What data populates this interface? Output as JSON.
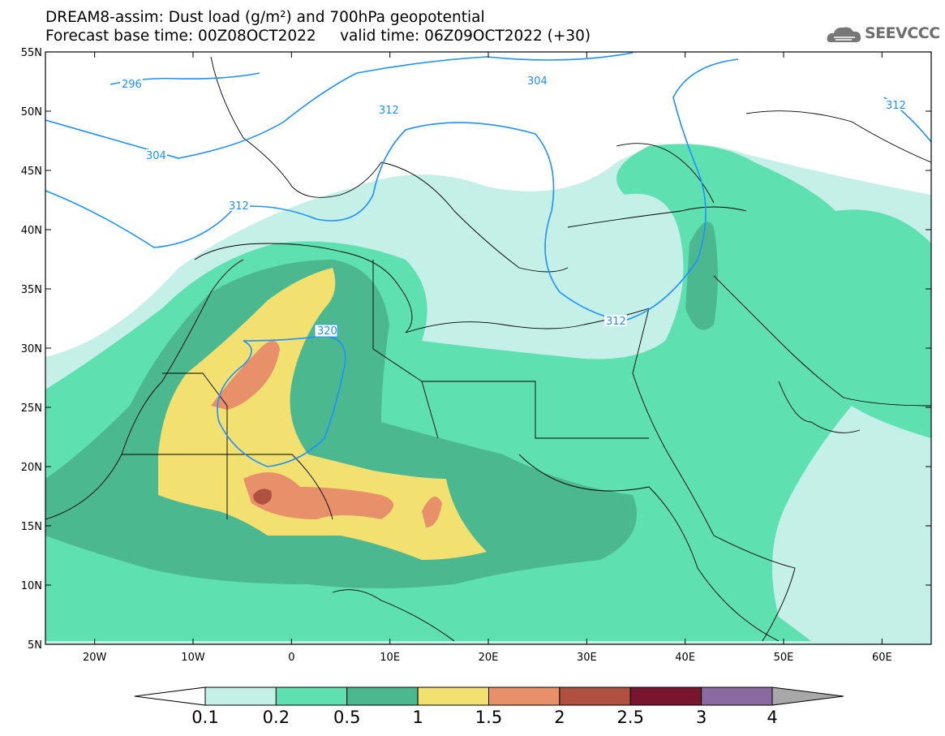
{
  "title": {
    "line1": "DREAM8-assim: Dust load (g/m²) and 700hPa geopotential",
    "line2": "Forecast base time: 00Z08OCT2022     valid time: 06Z09OCT2022 (+30)"
  },
  "logo": {
    "text": "SEEVCCC",
    "icon": "cloud-icon"
  },
  "map": {
    "lon_range": [
      -25,
      65
    ],
    "lat_range": [
      5,
      55
    ],
    "lat_ticks": [
      "55N",
      "50N",
      "45N",
      "40N",
      "35N",
      "30N",
      "25N",
      "20N",
      "15N",
      "10N",
      "5N"
    ],
    "lon_ticks": [
      "20W",
      "10W",
      "0",
      "10E",
      "20E",
      "30E",
      "40E",
      "50E",
      "60E"
    ]
  },
  "contours": {
    "color": "#1e90ff",
    "labels": [
      "296",
      "304",
      "312",
      "312",
      "304",
      "312",
      "312",
      "320"
    ]
  },
  "colorbar": {
    "labels": [
      "0.1",
      "0.2",
      "0.5",
      "1",
      "1.5",
      "2",
      "2.5",
      "3",
      "4"
    ],
    "colors": [
      "#ffffff",
      "#c4f0e8",
      "#5fe0b0",
      "#4bb890",
      "#f2e070",
      "#e8906a",
      "#b05040",
      "#7a1530",
      "#8a6aa0",
      "#a8a8a8"
    ]
  }
}
